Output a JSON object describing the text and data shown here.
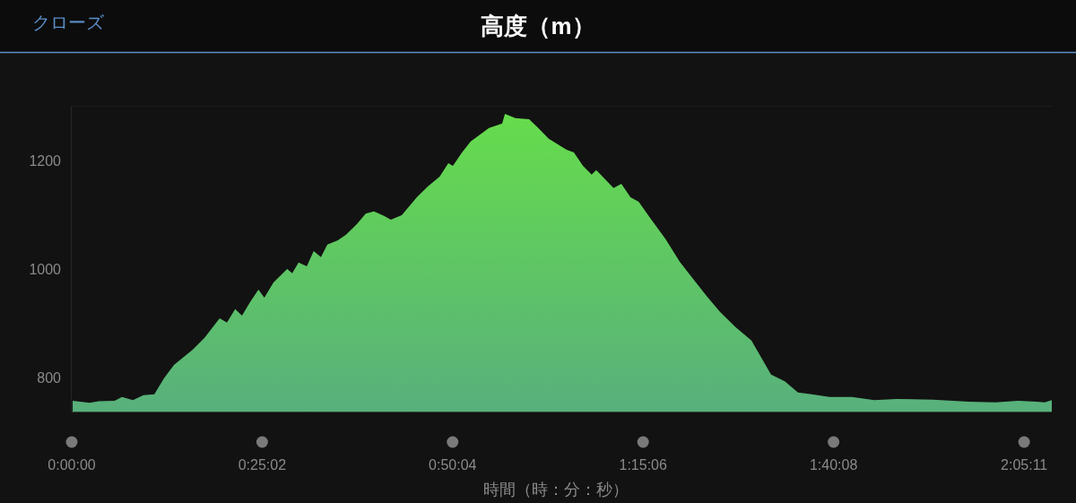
{
  "chart_data": {
    "type": "area",
    "title": "高度（m）",
    "xlabel": "時間（時：分：秒）",
    "annotations": [
      "クローズ"
    ],
    "x": [
      0.002,
      0.039,
      0.059,
      0.094,
      0.11,
      0.134,
      0.157,
      0.181,
      0.202,
      0.224,
      0.265,
      0.291,
      0.324,
      0.34,
      0.358,
      0.373,
      0.391,
      0.409,
      0.422,
      0.442,
      0.472,
      0.483,
      0.497,
      0.515,
      0.53,
      0.546,
      0.56,
      0.583,
      0.601,
      0.625,
      0.644,
      0.662,
      0.684,
      0.699,
      0.723,
      0.756,
      0.78,
      0.806,
      0.825,
      0.835,
      0.855,
      0.874,
      0.914,
      0.943,
      0.949,
      0.972,
      1.002,
      1.022,
      1.045,
      1.084,
      1.1,
      1.12,
      1.139,
      1.149,
      1.163,
      1.187,
      1.204,
      1.224,
      1.242,
      1.267,
      1.301,
      1.332,
      1.36,
      1.391,
      1.42,
      1.454,
      1.489,
      1.532,
      1.562,
      1.591,
      1.621,
      1.66,
      1.709,
      1.758,
      1.807,
      1.886,
      1.965,
      2.024,
      2.073,
      2.112,
      2.132,
      2.147
    ],
    "values": [
      757,
      753,
      756,
      757,
      764,
      758,
      767,
      769,
      798,
      823,
      851,
      873,
      909,
      901,
      926,
      914,
      939,
      962,
      947,
      975,
      1000,
      992,
      1012,
      1005,
      1033,
      1022,
      1045,
      1053,
      1063,
      1083,
      1102,
      1106,
      1098,
      1091,
      1099,
      1132,
      1152,
      1170,
      1195,
      1190,
      1215,
      1235,
      1260,
      1268,
      1286,
      1278,
      1276,
      1260,
      1240,
      1220,
      1215,
      1190,
      1174,
      1182,
      1170,
      1149,
      1157,
      1132,
      1124,
      1094,
      1055,
      1013,
      983,
      950,
      921,
      893,
      868,
      805,
      793,
      772,
      769,
      764,
      764,
      758,
      760,
      759,
      755,
      754,
      757,
      755,
      754,
      758
    ],
    "color": "#66dc4c",
    "xlim": [
      0,
      2.147
    ],
    "ylim": [
      737,
      1300
    ],
    "xticks": [
      {
        "value": 0,
        "label": "0:00:00"
      },
      {
        "value": 0.4172,
        "label": "0:25:02"
      },
      {
        "value": 0.8344,
        "label": "0:50:04"
      },
      {
        "value": 1.2517,
        "label": "1:15:06"
      },
      {
        "value": 1.6689,
        "label": "1:40:08"
      },
      {
        "value": 2.0864,
        "label": "2:05:11"
      }
    ],
    "yticks": [
      800,
      1000,
      1200
    ],
    "grid": false
  }
}
